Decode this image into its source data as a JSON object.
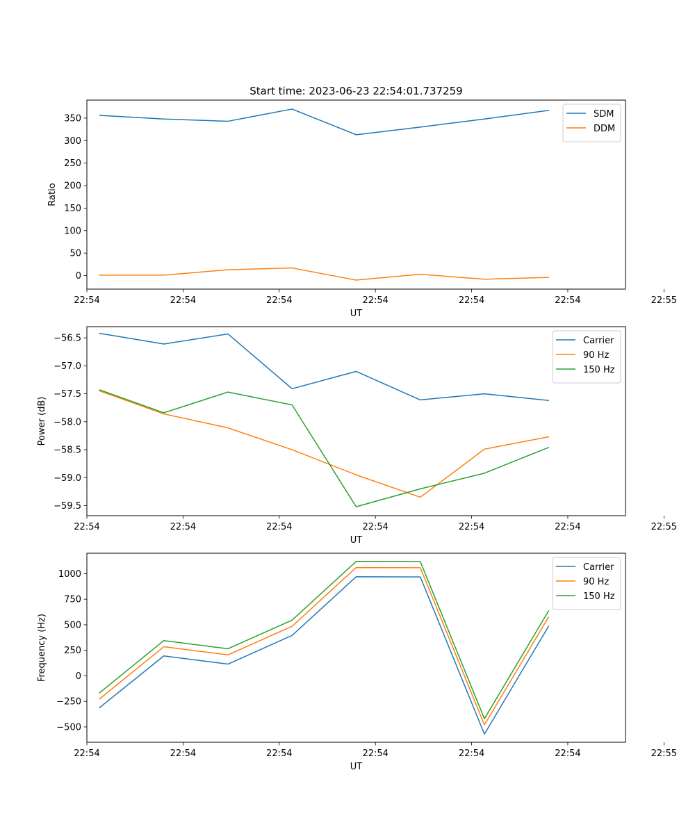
{
  "figure_title": "Start time: 2023-06-23 22:54:01.737259",
  "chart_data": [
    {
      "type": "line",
      "title": "",
      "xlabel": "UT",
      "ylabel": "Ratio",
      "x": [
        1,
        2,
        3,
        4,
        5,
        6,
        7,
        8
      ],
      "xlim": [
        0.8,
        9.2
      ],
      "x_ticks": [
        0.8,
        2.3,
        3.8,
        5.3,
        6.8,
        8.3,
        9.8
      ],
      "x_tick_labels": [
        "22:54",
        "22:54",
        "22:54",
        "22:54",
        "22:54",
        "22:54",
        "22:55"
      ],
      "ylim": [
        -30,
        390
      ],
      "y_ticks": [
        0,
        50,
        100,
        150,
        200,
        250,
        300,
        350
      ],
      "legend_position": "top-right",
      "series": [
        {
          "name": "SDM",
          "color": "#1f77b4",
          "values": [
            356,
            348,
            343,
            370,
            313,
            330,
            348,
            367
          ]
        },
        {
          "name": "DDM",
          "color": "#ff7f0e",
          "values": [
            1,
            1,
            13,
            17,
            -10,
            3,
            -8,
            -4
          ]
        }
      ]
    },
    {
      "type": "line",
      "title": "",
      "xlabel": "UT",
      "ylabel": "Power (dB)",
      "x": [
        1,
        2,
        3,
        4,
        5,
        6,
        7,
        8
      ],
      "xlim": [
        0.8,
        9.2
      ],
      "x_ticks": [
        0.8,
        2.3,
        3.8,
        5.3,
        6.8,
        8.3,
        9.8
      ],
      "x_tick_labels": [
        "22:54",
        "22:54",
        "22:54",
        "22:54",
        "22:54",
        "22:54",
        "22:55"
      ],
      "ylim": [
        -59.68,
        -56.3
      ],
      "y_ticks": [
        -59.5,
        -59.0,
        -58.5,
        -58.0,
        -57.5,
        -57.0,
        -56.5
      ],
      "y_tick_labels": [
        "−59.5",
        "−59.0",
        "−58.5",
        "−58.0",
        "−57.5",
        "−57.0",
        "−56.5"
      ],
      "legend_position": "top-right",
      "series": [
        {
          "name": "Carrier",
          "color": "#1f77b4",
          "values": [
            -56.42,
            -56.61,
            -56.43,
            -57.41,
            -57.1,
            -57.61,
            -57.5,
            -57.62
          ]
        },
        {
          "name": "90 Hz",
          "color": "#ff7f0e",
          "values": [
            -57.45,
            -57.86,
            -58.11,
            -58.5,
            -58.95,
            -59.35,
            -58.49,
            -58.27
          ]
        },
        {
          "name": "150 Hz",
          "color": "#2ca02c",
          "values": [
            -57.43,
            -57.84,
            -57.47,
            -57.7,
            -59.52,
            -59.2,
            -58.92,
            -58.46
          ]
        }
      ]
    },
    {
      "type": "line",
      "title": "",
      "xlabel": "UT",
      "ylabel": "Frequency (Hz)",
      "x": [
        1,
        2,
        3,
        4,
        5,
        6,
        7,
        8
      ],
      "xlim": [
        0.8,
        9.2
      ],
      "x_ticks": [
        0.8,
        2.3,
        3.8,
        5.3,
        6.8,
        8.3,
        9.8
      ],
      "x_tick_labels": [
        "22:54",
        "22:54",
        "22:54",
        "22:54",
        "22:54",
        "22:54",
        "22:55"
      ],
      "ylim": [
        -650,
        1200
      ],
      "y_ticks": [
        -500,
        -250,
        0,
        250,
        500,
        750,
        1000
      ],
      "y_tick_labels": [
        "−500",
        "−250",
        "0",
        "250",
        "500",
        "750",
        "1000"
      ],
      "legend_position": "top-right",
      "series": [
        {
          "name": "Carrier",
          "color": "#1f77b4",
          "values": [
            -310,
            195,
            115,
            395,
            970,
            968,
            -570,
            485
          ]
        },
        {
          "name": "90 Hz",
          "color": "#ff7f0e",
          "values": [
            -225,
            285,
            205,
            485,
            1060,
            1058,
            -480,
            575
          ]
        },
        {
          "name": "150 Hz",
          "color": "#2ca02c",
          "values": [
            -165,
            345,
            265,
            545,
            1120,
            1118,
            -420,
            635
          ]
        }
      ]
    }
  ]
}
